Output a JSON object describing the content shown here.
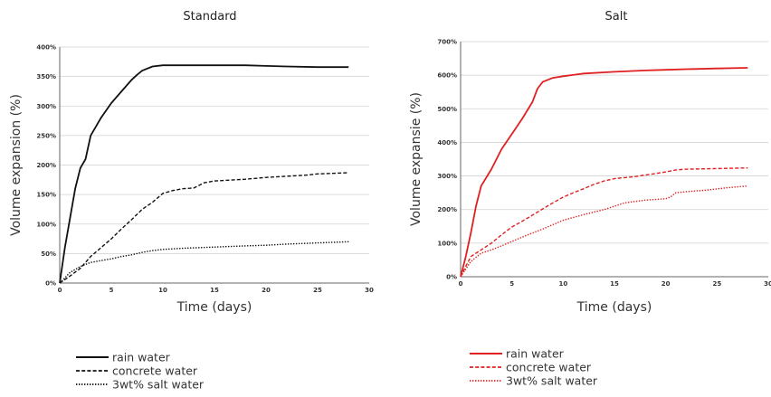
{
  "chart_data": [
    {
      "type": "line",
      "title": "Standard",
      "xlabel": "Time (days)",
      "ylabel": "Volume expansion (%)",
      "xlim": [
        0,
        30
      ],
      "ylim": [
        0,
        400
      ],
      "x_ticks": [
        0,
        5,
        10,
        15,
        20,
        25,
        30
      ],
      "x_tick_labels": [
        "0",
        "5",
        "10",
        "15",
        "20",
        "25",
        "30"
      ],
      "y_ticks": [
        0,
        50,
        100,
        150,
        200,
        250,
        300,
        350,
        400
      ],
      "y_tick_labels": [
        "0%",
        "50%",
        "100%",
        "150%",
        "200%",
        "250%",
        "300%",
        "350%",
        "400%"
      ],
      "grid": "horizontal",
      "legend_position": "bottom-left",
      "color": "#111111",
      "series": [
        {
          "name": "rain water",
          "style": "solid",
          "x": [
            0,
            0.5,
            1,
            1.5,
            2,
            2.5,
            3,
            4,
            5,
            6,
            7,
            7.5,
            8,
            9,
            10,
            12,
            15,
            18,
            20,
            22,
            25,
            28
          ],
          "y": [
            0,
            60,
            110,
            160,
            195,
            210,
            250,
            280,
            305,
            325,
            345,
            353,
            360,
            367,
            369,
            369,
            369,
            369,
            368,
            367,
            366,
            366
          ]
        },
        {
          "name": "concrete water",
          "style": "dashed",
          "x": [
            0,
            1,
            2,
            3,
            4,
            5,
            6,
            7,
            8,
            9,
            10,
            11,
            12,
            13,
            14,
            15,
            16,
            18,
            20,
            22,
            24,
            25,
            28
          ],
          "y": [
            0,
            12,
            25,
            45,
            60,
            75,
            92,
            108,
            125,
            137,
            152,
            157,
            160,
            161,
            170,
            173,
            174,
            176,
            179,
            181,
            183,
            185,
            187
          ]
        },
        {
          "name": "3wt% salt water",
          "style": "dotted",
          "x": [
            0,
            1,
            2,
            3,
            4,
            5,
            6,
            7,
            8,
            9,
            10,
            12,
            15,
            18,
            20,
            22,
            25,
            28
          ],
          "y": [
            0,
            18,
            28,
            35,
            38,
            41,
            45,
            48,
            52,
            55,
            57,
            59,
            61,
            63,
            64,
            66,
            68,
            70
          ]
        }
      ]
    },
    {
      "type": "line",
      "title": "Salt",
      "xlabel": "Time (days)",
      "ylabel": "Volume expansie (%)",
      "xlim": [
        0,
        30
      ],
      "ylim": [
        0,
        700
      ],
      "x_ticks": [
        0,
        5,
        10,
        15,
        20,
        25,
        30
      ],
      "x_tick_labels": [
        "0",
        "5",
        "10",
        "15",
        "20",
        "25",
        "30"
      ],
      "y_ticks": [
        0,
        100,
        200,
        300,
        400,
        500,
        600,
        700
      ],
      "y_tick_labels": [
        "0%",
        "100%",
        "200%",
        "300%",
        "400%",
        "500%",
        "600%",
        "700%"
      ],
      "grid": "horizontal",
      "legend_position": "bottom-left",
      "color": "#e02020",
      "series": [
        {
          "name": "rain water",
          "style": "solid",
          "x": [
            0,
            0.5,
            1,
            1.5,
            2,
            3,
            4,
            5,
            6,
            7,
            7.5,
            8,
            9,
            10,
            12,
            15,
            18,
            20,
            22,
            25,
            28
          ],
          "y": [
            0,
            60,
            130,
            210,
            270,
            320,
            380,
            425,
            470,
            520,
            560,
            580,
            592,
            597,
            605,
            610,
            614,
            616,
            618,
            620,
            622
          ]
        },
        {
          "name": "concrete water",
          "style": "dashed",
          "x": [
            0,
            1,
            2,
            3,
            4,
            5,
            6,
            7,
            8,
            9,
            10,
            11,
            12,
            13,
            14,
            15,
            16,
            17,
            18,
            19,
            20,
            21,
            22,
            25,
            28
          ],
          "y": [
            0,
            60,
            80,
            100,
            125,
            148,
            165,
            183,
            202,
            220,
            237,
            250,
            262,
            275,
            285,
            292,
            295,
            298,
            303,
            307,
            312,
            318,
            320,
            322,
            324
          ]
        },
        {
          "name": "3wt% salt water",
          "style": "dotted",
          "x": [
            0,
            1,
            2,
            3,
            4,
            5,
            6,
            7,
            8,
            9,
            10,
            12,
            14,
            16,
            18,
            20,
            20.5,
            21,
            22,
            24,
            26,
            28
          ],
          "y": [
            0,
            45,
            70,
            80,
            92,
            105,
            118,
            130,
            142,
            155,
            168,
            185,
            200,
            220,
            228,
            232,
            238,
            250,
            253,
            258,
            265,
            270
          ]
        }
      ]
    }
  ]
}
